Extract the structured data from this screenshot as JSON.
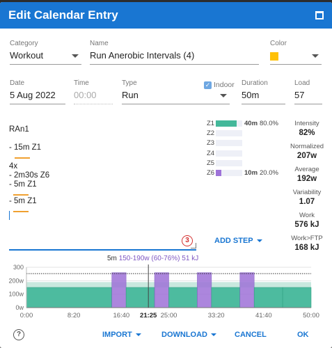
{
  "dialog": {
    "title": "Edit Calendar Entry"
  },
  "fields": {
    "category": {
      "label": "Category",
      "value": "Workout"
    },
    "name": {
      "label": "Name",
      "value": "Run Anerobic Intervals (4)"
    },
    "color": {
      "label": "Color",
      "value": "#ffc107"
    },
    "date": {
      "label": "Date",
      "value": "5 Aug 2022"
    },
    "time": {
      "label": "Time",
      "placeholder": "00:00"
    },
    "type": {
      "label": "Type",
      "value": "Run"
    },
    "indoor": {
      "label": "Indoor",
      "checked": true
    },
    "duration": {
      "label": "Duration",
      "value": "50m"
    },
    "load": {
      "label": "Load",
      "value": "57"
    }
  },
  "description_lines": [
    "RAn1",
    "",
    "- 15m Z1",
    "",
    "4x",
    "- 2m30s Z6",
    "- 5m Z1",
    "",
    "- 5m Z1"
  ],
  "zones": [
    {
      "name": "Z1",
      "time": "40m",
      "pct": "80.0%",
      "fraction": 0.8,
      "color": "#44b89a"
    },
    {
      "name": "Z2",
      "time": "",
      "pct": "",
      "fraction": 0,
      "color": "#44b89a"
    },
    {
      "name": "Z3",
      "time": "",
      "pct": "",
      "fraction": 0,
      "color": "#44b89a"
    },
    {
      "name": "Z4",
      "time": "",
      "pct": "",
      "fraction": 0,
      "color": "#44b89a"
    },
    {
      "name": "Z5",
      "time": "",
      "pct": "",
      "fraction": 0,
      "color": "#44b89a"
    },
    {
      "name": "Z6",
      "time": "10m",
      "pct": "20.0%",
      "fraction": 0.2,
      "color": "#9e72d8"
    }
  ],
  "stats": [
    {
      "label": "Intensity",
      "value": "82%"
    },
    {
      "label": "Normalized",
      "value": "207w"
    },
    {
      "label": "Average",
      "value": "192w"
    },
    {
      "label": "Variability",
      "value": "1.07"
    },
    {
      "label": "Work",
      "value": "576 kJ"
    },
    {
      "label": "Work>FTP",
      "value": "168 kJ"
    }
  ],
  "badge": "3",
  "add_step_label": "ADD STEP",
  "step_info": {
    "duration": "5m",
    "power": "150-190w (60-76%)",
    "energy": "51 kJ"
  },
  "chart_data": {
    "type": "area",
    "x_ticks": [
      "0:00",
      "8:20",
      "16:40",
      "21:25",
      "25:00",
      "33:20",
      "41:40",
      "50:00"
    ],
    "x_tick_values": [
      0,
      500,
      1000,
      1285,
      1500,
      2000,
      2500,
      3000
    ],
    "y_ticks": [
      "0w",
      "100w",
      "200w",
      "300"
    ],
    "y_tick_values": [
      0,
      100,
      200,
      300
    ],
    "xlim": [
      0,
      3000
    ],
    "ylim": [
      0,
      300
    ],
    "cursor": 1285,
    "ftp_line": 253,
    "band": [
      150,
      190
    ],
    "steps": [
      {
        "start": 0,
        "end": 900,
        "value": 150,
        "zone": "Z1"
      },
      {
        "start": 900,
        "end": 1050,
        "value": 260,
        "zone": "Z6"
      },
      {
        "start": 1050,
        "end": 1350,
        "value": 150,
        "zone": "Z1"
      },
      {
        "start": 1350,
        "end": 1500,
        "value": 260,
        "zone": "Z6"
      },
      {
        "start": 1500,
        "end": 1800,
        "value": 150,
        "zone": "Z1"
      },
      {
        "start": 1800,
        "end": 1950,
        "value": 260,
        "zone": "Z6"
      },
      {
        "start": 1950,
        "end": 2250,
        "value": 150,
        "zone": "Z1"
      },
      {
        "start": 2250,
        "end": 2400,
        "value": 260,
        "zone": "Z6"
      },
      {
        "start": 2400,
        "end": 2700,
        "value": 150,
        "zone": "Z1"
      },
      {
        "start": 2700,
        "end": 3000,
        "value": 150,
        "zone": "Z1"
      }
    ],
    "colors": {
      "Z1": "#44b89a",
      "Z6": "#9e72d8",
      "band": "#c9e8de"
    }
  },
  "footer": {
    "help": "?",
    "import": "IMPORT",
    "download": "DOWNLOAD",
    "cancel": "CANCEL",
    "ok": "OK"
  }
}
